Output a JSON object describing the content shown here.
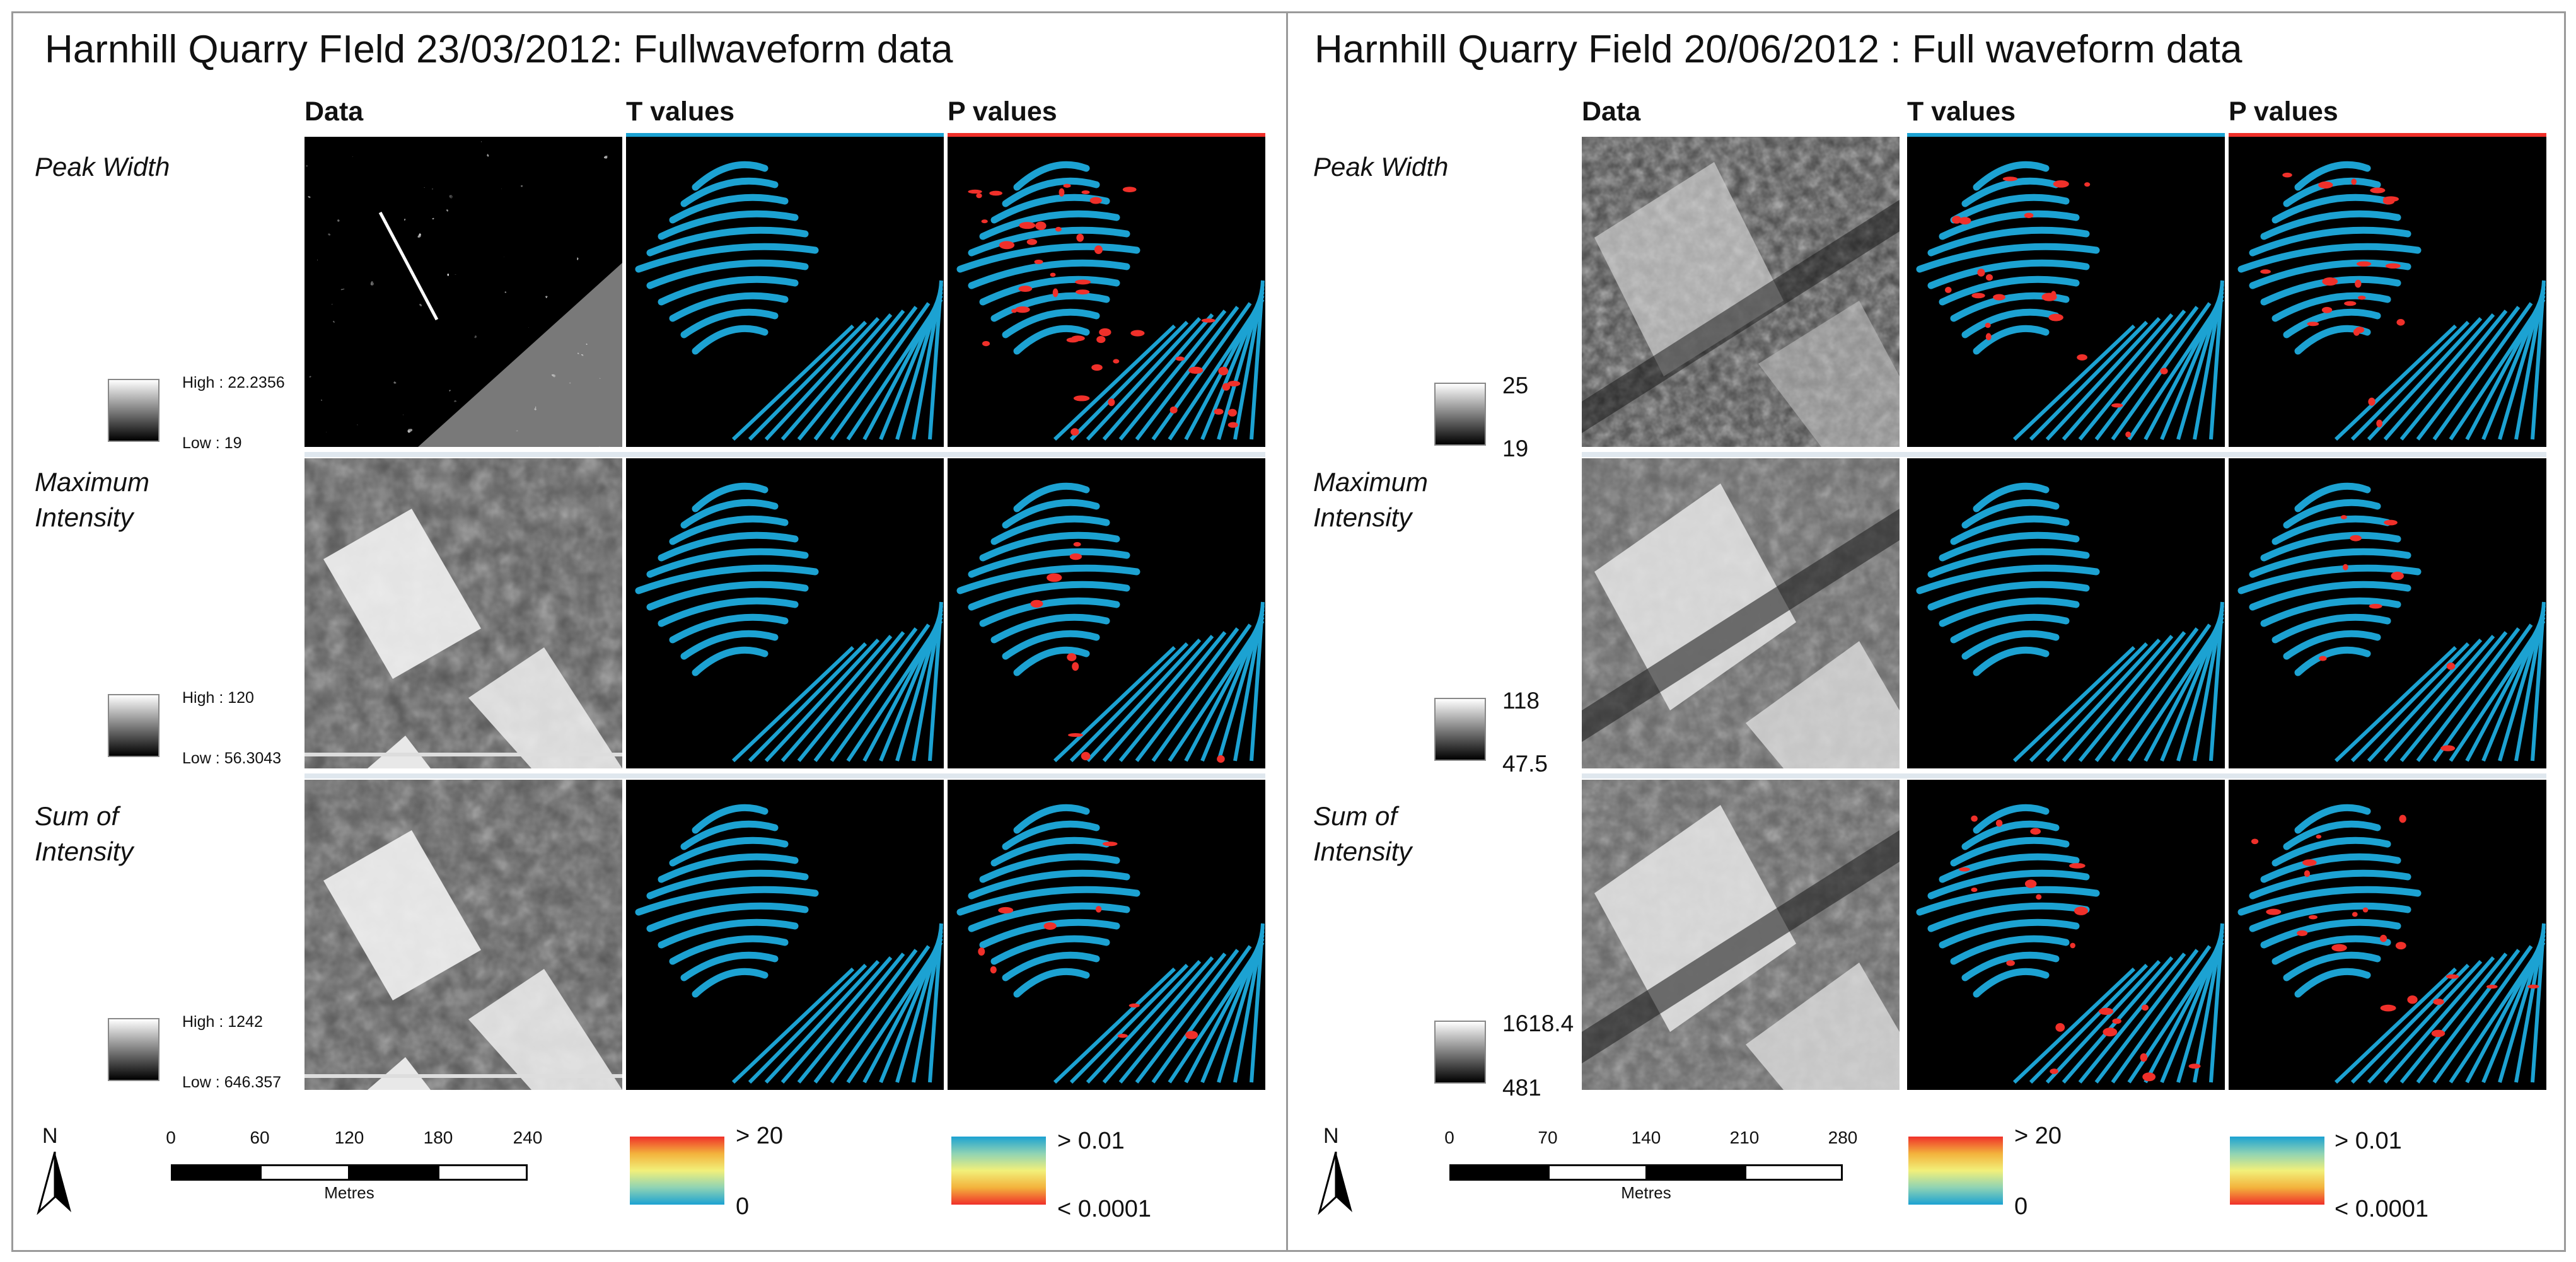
{
  "colors": {
    "stripe_blue": "#1ca2d2",
    "signif_red": "#f0302a",
    "background": "#000000"
  },
  "panels": [
    {
      "title": "Harnhill Quarry FIeld 23/03/2012: Fullwaveform data",
      "columns": [
        "Data",
        "T values",
        "P values"
      ],
      "rows": [
        {
          "label": "Peak Width",
          "high": "High : 22.2356",
          "low": "Low : 19"
        },
        {
          "label": "Maximum Intensity",
          "high": "High : 120",
          "low": "Low : 56.3043"
        },
        {
          "label": "Sum of Intensity",
          "high": "High : 1242",
          "low": "Low : 646.357"
        }
      ],
      "north": "N",
      "scale": {
        "ticks": [
          "0",
          "60",
          "120",
          "180",
          "240"
        ],
        "unit": "Metres"
      },
      "t_legend": {
        "top": "> 20",
        "bottom": "0"
      },
      "p_legend": {
        "top": "> 0.01",
        "bottom": "< 0.0001"
      }
    },
    {
      "title": "Harnhill Quarry Field 20/06/2012 : Full waveform data",
      "columns": [
        "Data",
        "T values",
        "P values"
      ],
      "rows": [
        {
          "label": "Peak Width",
          "high": "25",
          "low": "19"
        },
        {
          "label": "Maximum Intensity",
          "high": "118",
          "low": "47.5"
        },
        {
          "label": "Sum of Intensity",
          "high": "1618.4",
          "low": "481"
        }
      ],
      "north": "N",
      "scale": {
        "ticks": [
          "0",
          "70",
          "140",
          "210",
          "280"
        ],
        "unit": "Metres"
      },
      "t_legend": {
        "top": "> 20",
        "bottom": "0"
      },
      "p_legend": {
        "top": "> 0.01",
        "bottom": "< 0.0001"
      }
    }
  ]
}
